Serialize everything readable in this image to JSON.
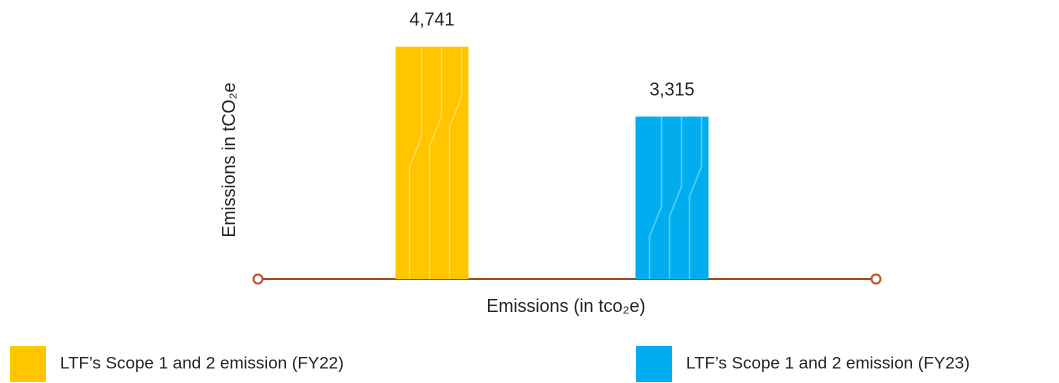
{
  "chart_data": {
    "type": "bar",
    "ylabel": "Emissions in tCO₂e",
    "xlabel": "Emissions (in tco₂e)",
    "categories": [
      null
    ],
    "series": [
      {
        "name": "LTF’s Scope 1 and 2 emission (FY22)",
        "color": "#ffc600",
        "values": [
          4741
        ],
        "value_labels": [
          "4,741"
        ]
      },
      {
        "name": "LTF’s Scope 1 and 2 emission (FY23)",
        "color": "#00aeef",
        "values": [
          3315
        ],
        "value_labels": [
          "3,315"
        ]
      }
    ],
    "ylim": [
      0,
      5000
    ]
  }
}
